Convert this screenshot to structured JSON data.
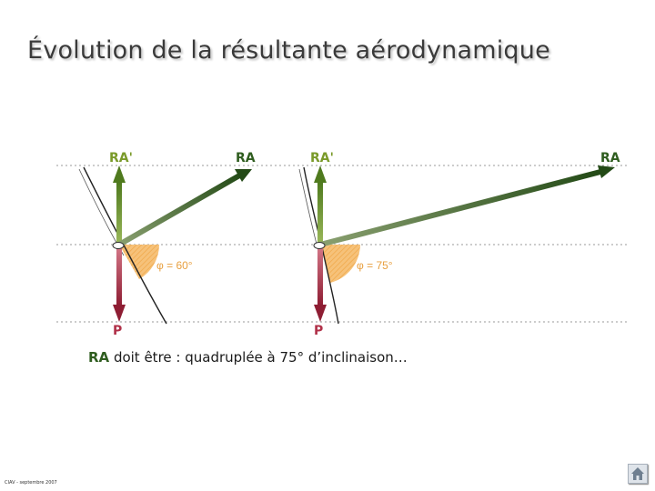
{
  "title": "Évolution de la résultante aérodynamique",
  "diagrams": [
    {
      "ra_prime_label": "RA'",
      "ra_label": "RA",
      "p_label": "P",
      "angle_label": "φ = 60°",
      "bank_angle_deg": 60
    },
    {
      "ra_prime_label": "RA'",
      "ra_label": "RA",
      "p_label": "P",
      "angle_label": "φ = 75°",
      "bank_angle_deg": 75
    }
  ],
  "caption": {
    "ra": "RA",
    "text": " doit être :  quadruplée à 75° d’inclinaison…"
  },
  "footer": "CIAV - septembre 2007",
  "colors": {
    "ra_prime": "#6b8e23",
    "ra": "#2f5d1f",
    "p": "#b03048",
    "angle_fill": "#f4b860",
    "guide": "#9a9a9a"
  },
  "icons": {
    "home": "home-icon"
  }
}
